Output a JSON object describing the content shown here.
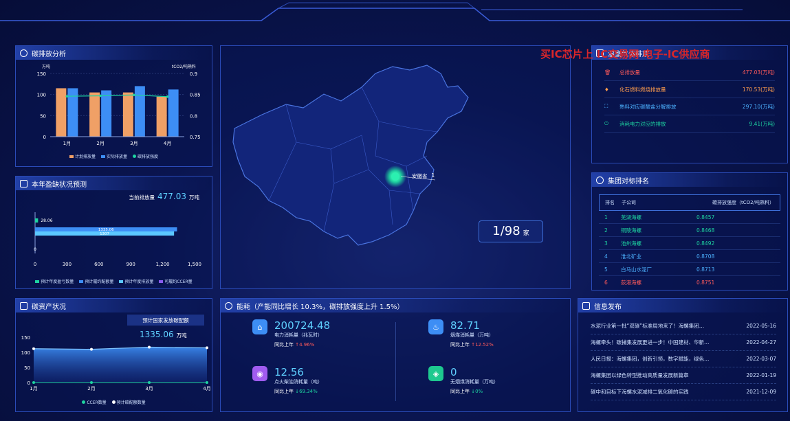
{
  "watermark": "买IC芯片上 IC交易网 电子-IC供应商",
  "carbon_analysis": {
    "title": "碳排放分析",
    "left_unit": "万吨",
    "right_unit": "tCO2/吨熟料",
    "legend": [
      "计划排放量",
      "实际排放量",
      "碳排放强度"
    ],
    "chart_data": {
      "type": "bar",
      "categories": [
        "1月",
        "2月",
        "3月",
        "4月"
      ],
      "series": [
        {
          "name": "计划排放量",
          "values": [
            115,
            105,
            105,
            95
          ],
          "color": "#f0a066"
        },
        {
          "name": "实际排放量",
          "values": [
            115,
            110,
            120,
            112
          ],
          "color": "#3d8ef5"
        },
        {
          "name": "碳排放强度",
          "values": [
            0.846,
            0.847,
            0.849,
            0.845
          ],
          "color": "#1ed3a0",
          "axis": "right"
        }
      ],
      "ylim": [
        0,
        150
      ],
      "yticks": [
        "150",
        "100",
        "50",
        "0"
      ],
      "y2lim": [
        0.75,
        0.9
      ],
      "y2ticks": [
        "0.9",
        "0.85",
        "0.8",
        "0.75"
      ]
    }
  },
  "gap_forecast": {
    "title": "本年盈缺状况预测",
    "current_label": "当前排放量",
    "current_value": "477.03",
    "current_unit": "万吨",
    "legend": [
      "预计年度盈亏数量",
      "预计履约配额量",
      "预计年度排放量",
      "可履约CCER量"
    ],
    "chart_data": {
      "type": "bar",
      "orientation": "horizontal",
      "series": [
        {
          "name": "预计年度盈亏数量",
          "value": 28.06,
          "label": "28.06",
          "color": "#1ed3a0"
        },
        {
          "name": "预计履约配额量",
          "value": 1335.06,
          "label": "1335.06",
          "color": "#3d8ef5"
        },
        {
          "name": "预计年度排放量",
          "value": 1307,
          "label": "1307",
          "color": "#5bc8ff"
        },
        {
          "name": "可履约CCER量",
          "value": 0,
          "label": "0",
          "color": "#8a5cf0"
        }
      ],
      "xlim": [
        0,
        1500
      ],
      "xticks": [
        "0",
        "300",
        "600",
        "900",
        "1,200",
        "1,500"
      ]
    }
  },
  "carbon_assets": {
    "title": "碳资产状况",
    "box_label": "预计国家发放碳配额",
    "box_value": "1335.06",
    "box_unit": "万吨",
    "legend": [
      "CCER数量",
      "预计碳配额数量"
    ],
    "chart_data": {
      "type": "area",
      "categories": [
        "1月",
        "2月",
        "3月",
        "4月"
      ],
      "series": [
        {
          "name": "CCER数量",
          "values": [
            0,
            0,
            0,
            0
          ]
        },
        {
          "name": "预计碳配额数量",
          "values": [
            112,
            110,
            117,
            115
          ]
        }
      ],
      "ylim": [
        0,
        150
      ],
      "yticks": [
        "150",
        "100",
        "50",
        "0"
      ]
    }
  },
  "map": {
    "label": "安徽省",
    "label_value": "1",
    "counter_value": "1/98",
    "counter_unit": "家"
  },
  "energy": {
    "title": "能耗（产能同比增长 10.3%，碳排放强度上升 1.5%）",
    "items": [
      {
        "value": "200724.48",
        "label": "电力消耗量（兆瓦时）",
        "cmp": "同比上年",
        "delta": "↑4.96%",
        "delta_color": "#ff5a5a",
        "color": "#3d8ef5",
        "icon": "home-icon"
      },
      {
        "value": "82.71",
        "label": "烟煤消耗量（万吨）",
        "cmp": "同比上年",
        "delta": "↑12.52%",
        "delta_color": "#ff5a5a",
        "color": "#3d8ef5",
        "icon": "fire-icon"
      },
      {
        "value": "12.56",
        "label": "点火柴油消耗量（吨）",
        "cmp": "同比上年",
        "delta": "↓69.34%",
        "delta_color": "#1ed3a0",
        "color": "#a15cf0",
        "icon": "oil-icon"
      },
      {
        "value": "0",
        "label": "无烟煤消耗量（万吨）",
        "cmp": "同比上年",
        "delta": "↓0%",
        "delta_color": "#1ed3a0",
        "color": "#1ec98f",
        "icon": "coal-icon"
      }
    ]
  },
  "ghg": {
    "title": "温室气体排放",
    "rows": [
      {
        "label": "总排放量",
        "value": "477.03(万吨)",
        "color": "#ff5a5a",
        "icon": "trash-icon"
      },
      {
        "label": "化石燃料燃烧排放量",
        "value": "170.53(万吨)",
        "color": "#ff9e4d",
        "icon": "flame-icon"
      },
      {
        "label": "熟料对应碳酸盐分解排放",
        "value": "297.10(万吨)",
        "color": "#4db2ff",
        "icon": "scan-icon"
      },
      {
        "label": "消耗电力对应的排放",
        "value": "9.41(万吨)",
        "color": "#1ed3a0",
        "icon": "power-icon"
      }
    ]
  },
  "ranking": {
    "title": "集团对标排名",
    "headers": [
      "排名",
      "子公司",
      "碳排放强度（tCO2/吨熟料）"
    ],
    "rows": [
      {
        "rank": "1",
        "name": "芜湖海螺",
        "value": "0.8457",
        "color": "#1ed3a0"
      },
      {
        "rank": "2",
        "name": "铜陵海螺",
        "value": "0.8468",
        "color": "#1ed3a0"
      },
      {
        "rank": "3",
        "name": "池州海螺",
        "value": "0.8492",
        "color": "#1ed3a0"
      },
      {
        "rank": "4",
        "name": "淮北矿业",
        "value": "0.8708",
        "color": "#4db2ff"
      },
      {
        "rank": "5",
        "name": "白马山水泥厂",
        "value": "0.8713",
        "color": "#4db2ff"
      },
      {
        "rank": "6",
        "name": "荻港海螺",
        "value": "0.8751",
        "color": "#ff5a5a"
      }
    ]
  },
  "news": {
    "title": "信息发布",
    "items": [
      {
        "title": "水泥行业第一批“双碳”标准局地来了！海螺集团…",
        "date": "2022-05-16"
      },
      {
        "title": "海螺牵头！碳捕集发展更进一步！中国建材、华新…",
        "date": "2022-04-27"
      },
      {
        "title": "人民日报：海螺集团，创新引领，数字赋能，绿色…",
        "date": "2022-03-07"
      },
      {
        "title": "海螺集团以绿色转型推动高质量发展新篇章",
        "date": "2022-01-19"
      },
      {
        "title": "碳中和目标下海螺水泥减排二氧化碳的实践",
        "date": "2021-12-09"
      }
    ]
  }
}
